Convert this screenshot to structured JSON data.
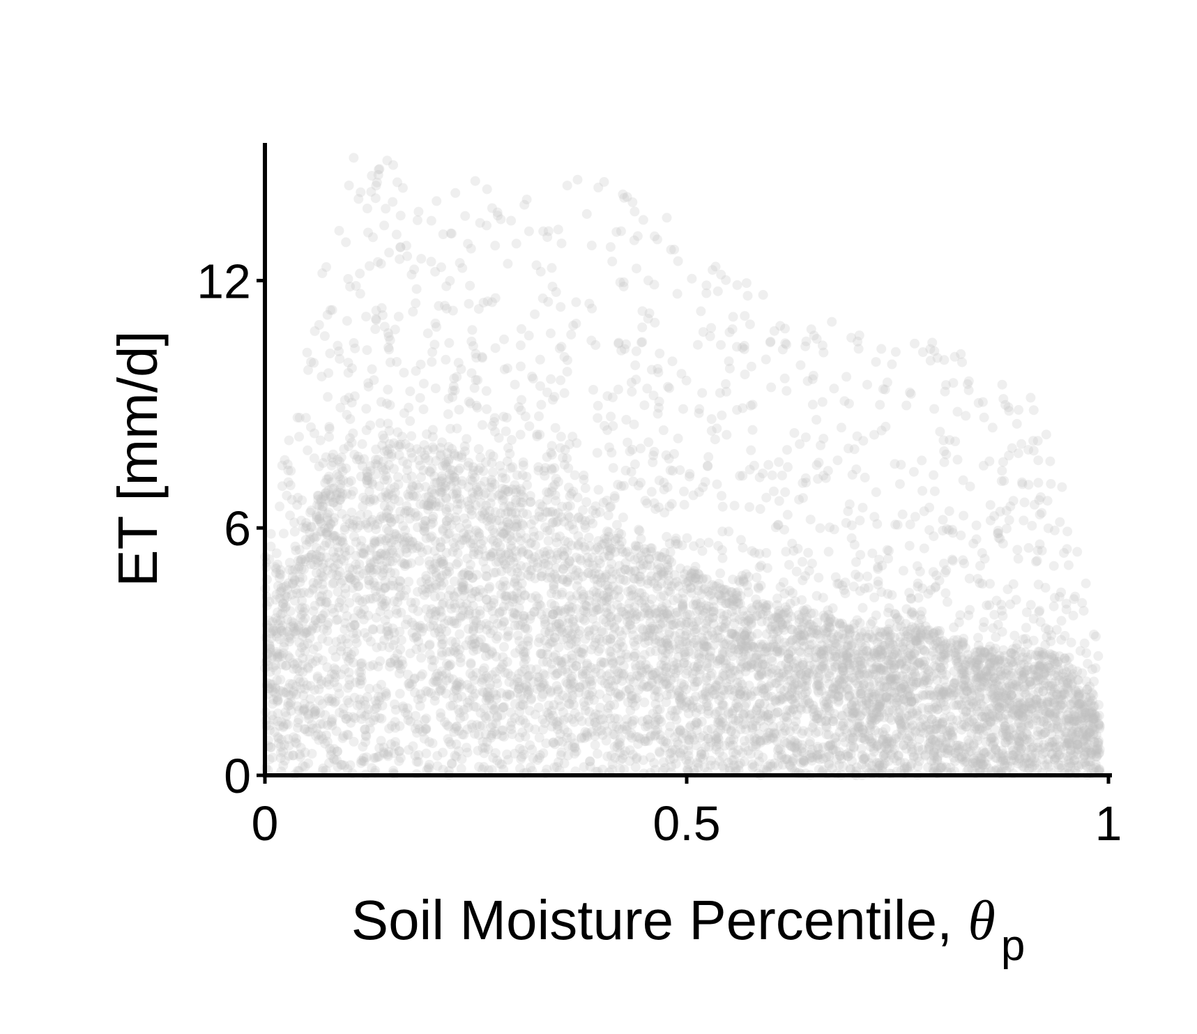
{
  "chart_data": {
    "type": "scatter",
    "xlabel": "Soil Moisture Percentile, ",
    "xlabel_symbol": "θ",
    "xlabel_subscript": "p",
    "ylabel": "ET [mm/d]",
    "xlim": [
      0,
      1
    ],
    "ylim": [
      0,
      15
    ],
    "x_ticks": [
      0,
      0.5,
      1
    ],
    "x_tick_labels": [
      "0",
      "0.5",
      "1"
    ],
    "y_ticks": [
      0,
      6,
      12
    ],
    "y_tick_labels": [
      "0",
      "6",
      "12"
    ],
    "grid": false,
    "legend": "none",
    "point_color": "#bfbfbf",
    "point_opacity": 0.25,
    "series": [
      {
        "density_envelope": {
          "x": [
            0.0,
            0.02,
            0.05,
            0.08,
            0.1,
            0.15,
            0.2,
            0.25,
            0.3,
            0.35,
            0.4,
            0.45,
            0.5,
            0.55,
            0.6,
            0.65,
            0.7,
            0.75,
            0.8,
            0.85,
            0.9,
            0.93,
            0.95,
            0.97,
            0.99
          ],
          "y_max": [
            5.5,
            7.5,
            10.5,
            13.5,
            15.0,
            15.0,
            14.5,
            14.5,
            14.0,
            14.5,
            14.5,
            14.0,
            13.5,
            12.0,
            12.0,
            11.0,
            11.0,
            10.5,
            10.5,
            10.0,
            9.5,
            8.5,
            6.5,
            5.0,
            3.5
          ],
          "y_dense": [
            3.0,
            4.5,
            6.0,
            7.5,
            8.0,
            8.0,
            8.0,
            7.5,
            7.0,
            6.5,
            6.0,
            5.5,
            5.0,
            4.5,
            4.0,
            4.0,
            3.5,
            3.5,
            3.5,
            3.0,
            3.0,
            3.0,
            2.5,
            2.0,
            1.5
          ]
        }
      }
    ]
  }
}
